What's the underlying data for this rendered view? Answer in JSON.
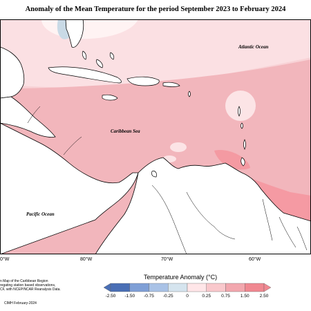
{
  "title": "Anomaly of the Mean Temperature for the period September 2023 to February 2024",
  "labels": {
    "atlantic": "Atlantic Ocean",
    "caribbean": "Caribbean Sea",
    "pacific": "Pacific Ocean"
  },
  "lon_ticks": [
    "0°W",
    "80°W",
    "70°W",
    "60°W"
  ],
  "notes": [
    "n Map of the Caribbean Region",
    "regating station based observations,",
    "CF, with NCEP/NCAR Reanalysis Data."
  ],
  "credit": "CIMH February-2024",
  "legend": {
    "title": "Temperature Anomaly (°C)",
    "ticks": [
      "-2.50",
      "-1.50",
      "-0.75",
      "-0.25",
      "0",
      "0.25",
      "0.75",
      "1.50",
      "2.50"
    ],
    "colors": [
      "#4a6fb5",
      "#7f9fd6",
      "#a9c2e6",
      "#d5e4ee",
      "#ffe6e8",
      "#f9c8cc",
      "#f2a7ae",
      "#f08891"
    ]
  }
}
